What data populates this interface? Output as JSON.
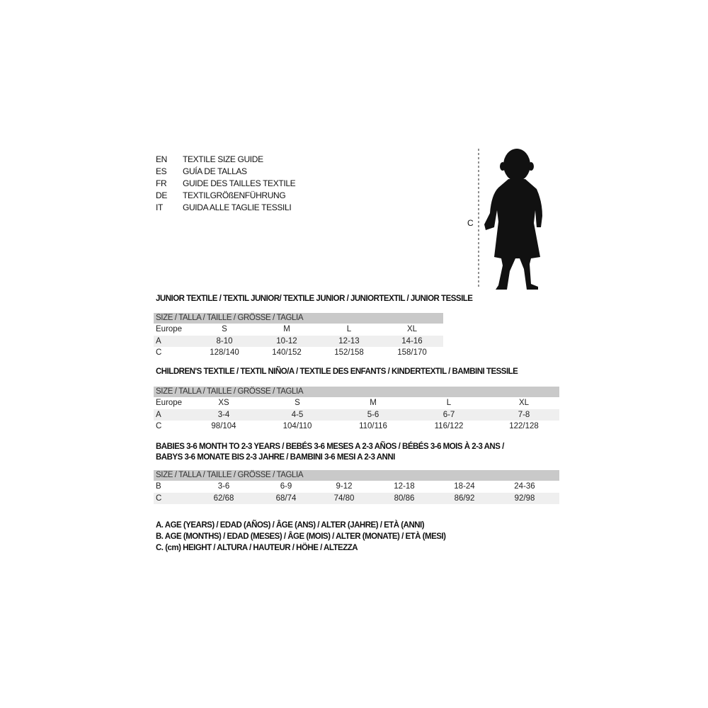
{
  "titles": [
    {
      "code": "EN",
      "text": "TEXTILE SIZE GUIDE"
    },
    {
      "code": "ES",
      "text": "GUÍA DE TALLAS"
    },
    {
      "code": "FR",
      "text": "GUIDE DES TAILLES TEXTILE"
    },
    {
      "code": "DE",
      "text": "TEXTILGRÖßENFÜHRUNG"
    },
    {
      "code": "IT",
      "text": "GUIDA ALLE TAGLIE TESSILI"
    }
  ],
  "figure": {
    "measure_label": "C"
  },
  "size_header": "SIZE / TALLA / TAILLE / GRÖSSE / TAGLIA",
  "junior": {
    "title": "JUNIOR TEXTILE / TEXTIL JUNIOR/ TEXTILE JUNIOR / JUNIORTEXTIL / JUNIOR TESSILE",
    "rows": [
      {
        "label": "Europe",
        "values": [
          "S",
          "M",
          "L",
          "XL"
        ]
      },
      {
        "label": "A",
        "values": [
          "8-10",
          "10-12",
          "12-13",
          "14-16"
        ]
      },
      {
        "label": "C",
        "values": [
          "128/140",
          "140/152",
          "152/158",
          "158/170"
        ]
      }
    ]
  },
  "children": {
    "title": "CHILDREN'S TEXTILE / TEXTIL NIÑO/A / TEXTILE DES ENFANTS / KINDERTEXTIL / BAMBINI TESSILE",
    "rows": [
      {
        "label": "Europe",
        "values": [
          "XS",
          "S",
          "M",
          "L",
          "XL"
        ]
      },
      {
        "label": "A",
        "values": [
          "3-4",
          "4-5",
          "5-6",
          "6-7",
          "7-8"
        ]
      },
      {
        "label": "C",
        "values": [
          "98/104",
          "104/110",
          "110/116",
          "116/122",
          "122/128"
        ]
      }
    ]
  },
  "babies": {
    "title_line1": "BABIES 3-6 MONTH TO 2-3 YEARS / BEBÉS 3-6 MESES A 2-3 AÑOS / BÉBÉS 3-6 MOIS À 2-3 ANS /",
    "title_line2": "BABYS 3-6 MONATE BIS 2-3 JAHRE / BAMBINI 3-6 MESI A 2-3 ANNI",
    "rows": [
      {
        "label": "B",
        "values": [
          "3-6",
          "6-9",
          "9-12",
          "12-18",
          "18-24",
          "24-36"
        ]
      },
      {
        "label": "C",
        "values": [
          "62/68",
          "68/74",
          "74/80",
          "80/86",
          "86/92",
          "92/98"
        ]
      }
    ]
  },
  "legend": [
    "A. AGE (YEARS) / EDAD (AÑOS) / ÂGE (ANS) / ALTER (JAHRE) / ETÀ (ANNI)",
    "B. AGE (MONTHS) / EDAD (MESES) / ÂGE (MOIS) / ALTER (MONATE) / ETÀ (MESI)",
    "C. (cm) HEIGHT / ALTURA / HAUTEUR / HÖHE / ALTEZZA"
  ]
}
